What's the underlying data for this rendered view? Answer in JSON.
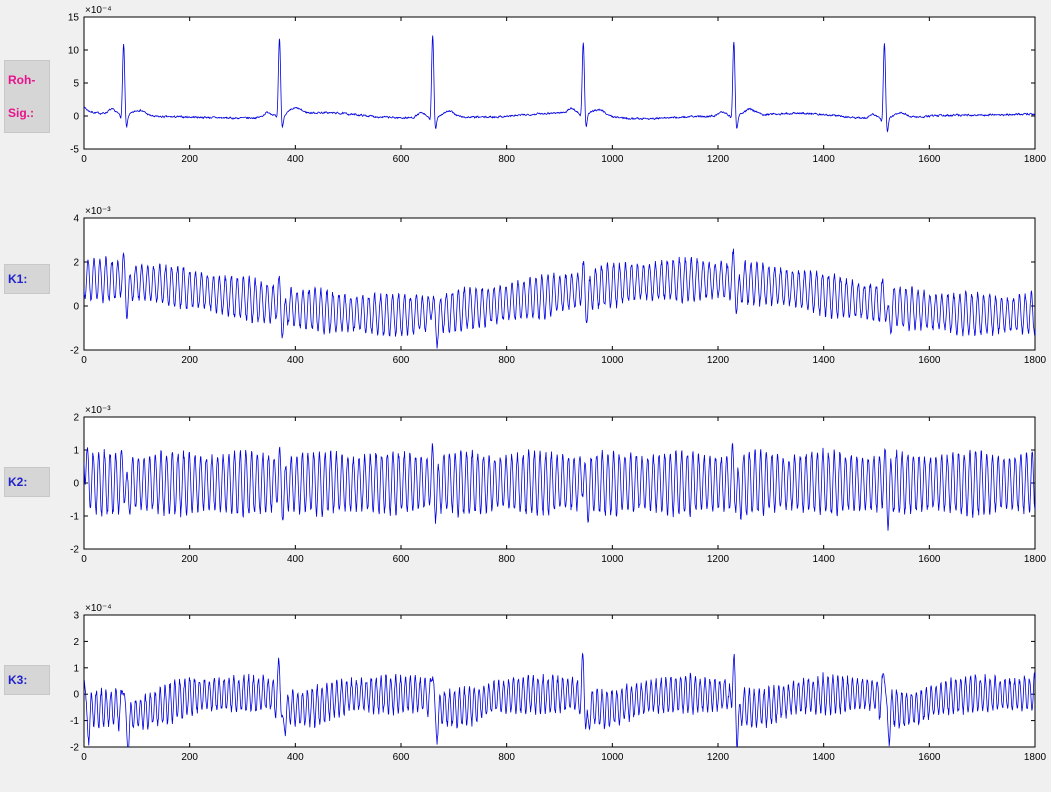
{
  "figure": {
    "background": "#f0f0f0",
    "plot_background": "#ffffff",
    "axis_color": "#000000",
    "line_color": "#0000dd",
    "label_box_bg": "#d6d6d6",
    "tick_label_color": "#000000"
  },
  "sidebar": {
    "labels": [
      {
        "id": "roh-sig",
        "lines": [
          "Roh-",
          "Sig.:"
        ],
        "color": "#e8128c"
      },
      {
        "id": "k1",
        "lines": [
          "K1:"
        ],
        "color": "#2222cc"
      },
      {
        "id": "k2",
        "lines": [
          "K2:"
        ],
        "color": "#2222cc"
      },
      {
        "id": "k3",
        "lines": [
          "K3:"
        ],
        "color": "#2222cc"
      }
    ]
  },
  "chart_data": [
    {
      "type": "line",
      "name": "roh-signal",
      "title": "",
      "xlabel": "",
      "ylabel": "",
      "scale_label": "×10⁻⁴",
      "unit_exponent": -4,
      "xlim": [
        0,
        1800
      ],
      "ylim": [
        -5,
        15
      ],
      "xticks": [
        0,
        200,
        400,
        600,
        800,
        1000,
        1200,
        1400,
        1600,
        1800
      ],
      "yticks": [
        -5,
        0,
        5,
        10,
        15
      ],
      "grid": false,
      "legend": null,
      "line_color": "#0000dd",
      "signal": {
        "kind": "ecg",
        "sample_step": 0.75,
        "beats": [
          75,
          370,
          660,
          945,
          1230,
          1515
        ],
        "r_amps": [
          11.3,
          12.3,
          12.9,
          11.4,
          11.9,
          12.1
        ],
        "r_width": 2.2,
        "q_amp": -1.6,
        "s_amp": -2.6,
        "p_amp": 0.7,
        "t_amp": 0.9,
        "noise": 0.25,
        "wander_amp": 0.35,
        "wander_period": 430,
        "transient_amp": 1.0,
        "transient_decay": 8,
        "seed": 7
      }
    },
    {
      "type": "line",
      "name": "k1",
      "title": "",
      "xlabel": "",
      "ylabel": "",
      "scale_label": "×10⁻³",
      "unit_exponent": -3,
      "xlim": [
        0,
        1800
      ],
      "ylim": [
        -2,
        4
      ],
      "xticks": [
        0,
        200,
        400,
        600,
        800,
        1000,
        1200,
        1400,
        1600,
        1800
      ],
      "yticks": [
        -2,
        0,
        2,
        4
      ],
      "grid": false,
      "legend": null,
      "line_color": "#0000dd",
      "signal": {
        "kind": "mod-osc",
        "sample_step": 0.75,
        "osc_amp": 0.85,
        "osc_period": 11.3,
        "amp_jitter": 0.18,
        "center_base": 0.4,
        "center_amp": 0.8,
        "center_period": 1150,
        "center_peak_x": 1150,
        "beats": [
          75,
          370,
          660,
          945,
          1230,
          1515
        ],
        "spike_up": 0.9,
        "spike_down": -0.9,
        "spike_width": 3,
        "seed": 11
      }
    },
    {
      "type": "line",
      "name": "k2",
      "title": "",
      "xlabel": "",
      "ylabel": "",
      "scale_label": "×10⁻³",
      "unit_exponent": -3,
      "xlim": [
        0,
        1800
      ],
      "ylim": [
        -2,
        2
      ],
      "xticks": [
        0,
        200,
        400,
        600,
        800,
        1000,
        1200,
        1400,
        1600,
        1800
      ],
      "yticks": [
        -2,
        -1,
        0,
        1,
        2
      ],
      "grid": false,
      "legend": null,
      "line_color": "#0000dd",
      "signal": {
        "kind": "mod-osc",
        "sample_step": 0.75,
        "osc_amp": 0.85,
        "osc_period": 10.7,
        "amp_jitter": 0.15,
        "center_base": 0,
        "center_amp": 0,
        "center_period": 1,
        "center_peak_x": 0,
        "beats": [
          75,
          370,
          660,
          945,
          1230,
          1515
        ],
        "spike_up": 0.55,
        "spike_down": -0.5,
        "spike_width": 3,
        "transient_amp": 1.2,
        "transient_decay": 4,
        "seed": 13
      }
    },
    {
      "type": "line",
      "name": "k3",
      "title": "",
      "xlabel": "",
      "ylabel": "",
      "scale_label": "×10⁻⁴",
      "unit_exponent": -4,
      "xlim": [
        0,
        1800
      ],
      "ylim": [
        -2,
        3
      ],
      "xticks": [
        0,
        200,
        400,
        600,
        800,
        1000,
        1200,
        1400,
        1600,
        1800
      ],
      "yticks": [
        -2,
        -1,
        0,
        1,
        2,
        3
      ],
      "grid": false,
      "legend": null,
      "line_color": "#0000dd",
      "signal": {
        "kind": "mod-osc",
        "sample_step": 0.75,
        "osc_amp": 0.62,
        "osc_period": 9.3,
        "amp_jitter": 0.25,
        "center_base": 0,
        "center_amp": 0,
        "center_period": 1,
        "center_peak_x": 0,
        "beats": [
          0,
          75,
          370,
          660,
          945,
          1230,
          1515
        ],
        "spike_up": 1.8,
        "spike_down": -1.0,
        "spike_width": 2.5,
        "post_dip_amp": -0.55,
        "post_dip_center": 40,
        "post_dip_width": 45,
        "seed": 17
      }
    }
  ]
}
